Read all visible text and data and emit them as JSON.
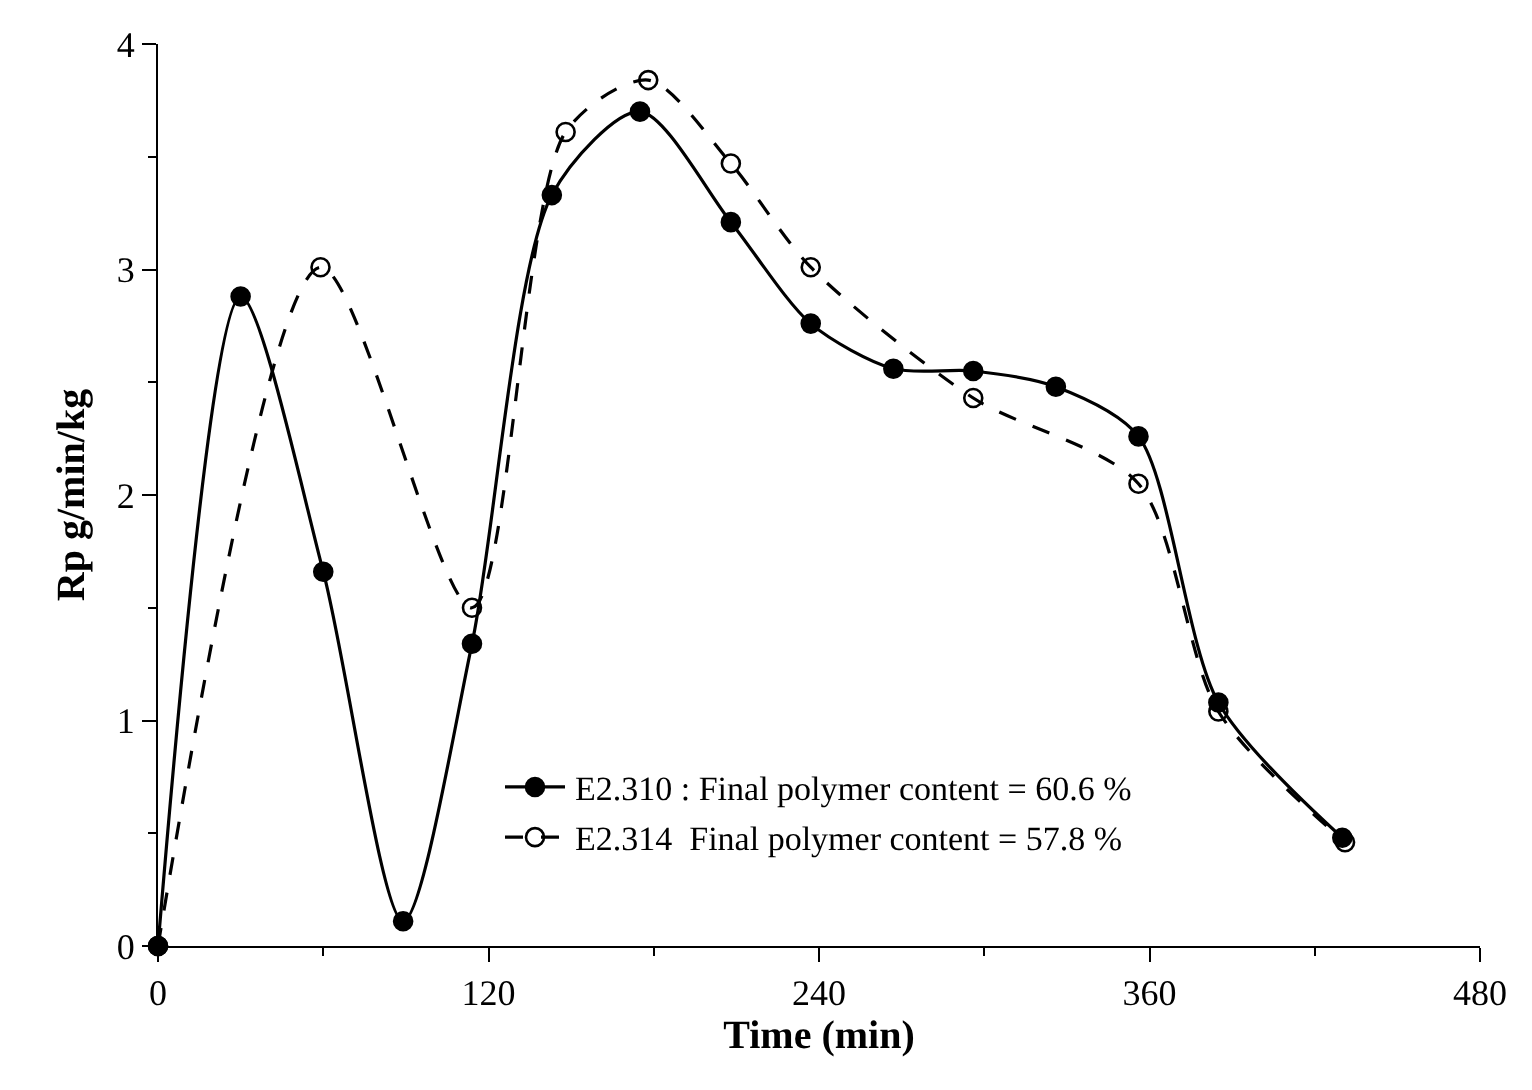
{
  "chart_data": {
    "type": "line",
    "xlabel": "Time (min)",
    "ylabel": "Rp g/min/kg",
    "xlim": [
      0,
      480
    ],
    "xticks": [
      0,
      120,
      240,
      360,
      480
    ],
    "ylim": [
      0,
      4
    ],
    "yticks": [
      0,
      1,
      2,
      3,
      4
    ],
    "grid": false,
    "legend": "bottom",
    "series": [
      {
        "name": "E2.310 : Final polymer content = 60.6 %",
        "color": "#000000",
        "line_style": "solid",
        "marker": "circle",
        "x": [
          0,
          30,
          60,
          89,
          114,
          143,
          175,
          208,
          237,
          267,
          296,
          326,
          356,
          385,
          430
        ],
        "values": [
          0,
          2.88,
          1.66,
          0.11,
          1.34,
          3.33,
          3.7,
          3.21,
          2.76,
          2.56,
          2.55,
          2.48,
          2.26,
          1.08,
          0.48
        ]
      },
      {
        "name": "E2.314  Final polymer content = 57.8 %",
        "color": "#000000",
        "line_style": "dashed",
        "marker": "circle-open",
        "x": [
          0,
          59,
          114,
          148,
          178,
          208,
          237,
          296,
          356,
          385,
          431
        ],
        "values": [
          0,
          3.01,
          1.5,
          3.61,
          3.84,
          3.47,
          3.01,
          2.43,
          2.05,
          1.04,
          0.46
        ]
      }
    ]
  }
}
